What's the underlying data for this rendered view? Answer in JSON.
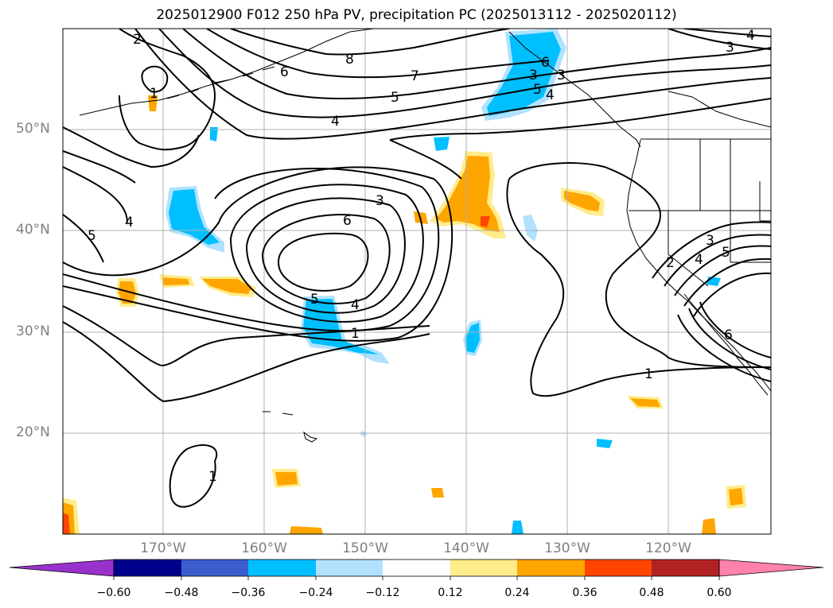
{
  "title": "2025012900 F012 250 hPa PV, precipitation PC (2025013112 - 2025020112)",
  "lat_labels": [
    "50°N",
    "40°N",
    "30°N",
    "20°N"
  ],
  "lon_labels": [
    "170°W",
    "160°W",
    "150°W",
    "140°W",
    "130°W",
    "120°W"
  ],
  "colorbar": {
    "tick_labels": [
      "−0.60",
      "−0.48",
      "−0.36",
      "−0.24",
      "−0.12",
      "0.12",
      "0.24",
      "0.36",
      "0.48",
      "0.60"
    ],
    "colors": [
      "#9932cc",
      "#00008b",
      "#3a5fcd",
      "#00bfff",
      "#b0e2ff",
      "#ffffff",
      "#ffec8b",
      "#ffa500",
      "#ff4500",
      "#b22222",
      "#ff82ab"
    ]
  },
  "contour_labels": [
    "2",
    "1",
    "6",
    "8",
    "7",
    "5",
    "4",
    "3",
    "4",
    "3",
    "6",
    "5",
    "4",
    "4",
    "5",
    "1",
    "1",
    "3",
    "2",
    "3",
    "4",
    "5",
    "6",
    "1",
    "4",
    "3",
    "6",
    "5"
  ],
  "colors": {
    "positive": "#ffa500",
    "positive_light": "#ffec8b",
    "negative": "#00bfff",
    "negative_light": "#b0e2ff",
    "strong_positive": "#ff4500",
    "grid": "#b0b0b0"
  }
}
